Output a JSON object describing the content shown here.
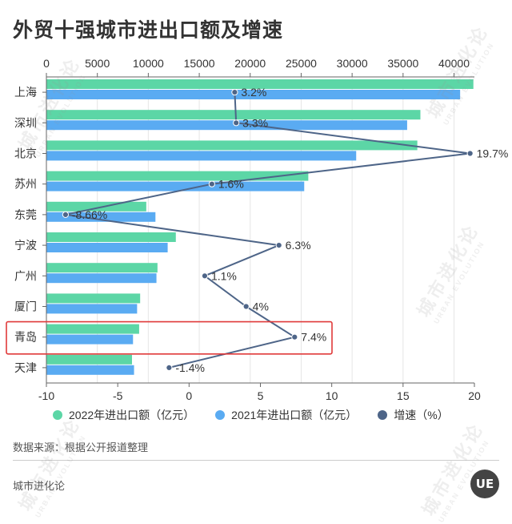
{
  "title": "外贸十强城市进出口额及增速",
  "chart_data": {
    "type": "bar",
    "orientation": "horizontal",
    "categories": [
      "上海",
      "深圳",
      "北京",
      "苏州",
      "东莞",
      "宁波",
      "广州",
      "厦门",
      "青岛",
      "天津"
    ],
    "series": [
      {
        "name": "2022年进出口额（亿元）",
        "axis": "top",
        "color": "#5cd6a6",
        "values": [
          41900,
          36700,
          36400,
          25700,
          9800,
          12700,
          10900,
          9200,
          9100,
          8400
        ]
      },
      {
        "name": "2021年进出口额（亿元）",
        "axis": "top",
        "color": "#5aabf2",
        "values": [
          40600,
          35400,
          30400,
          25300,
          10700,
          11900,
          10800,
          8900,
          8500,
          8600
        ]
      },
      {
        "name": "增速（%）",
        "axis": "bottom",
        "type": "line",
        "color": "#4e6588",
        "values": [
          3.2,
          3.3,
          19.7,
          1.6,
          -8.66,
          6.3,
          1.1,
          4,
          7.4,
          -1.4
        ],
        "labels": [
          "3.2%",
          "3.3%",
          "19.7%",
          "1.6%",
          "-8.66%",
          "6.3%",
          "1.1%",
          "4%",
          "7.4%",
          "-1.4%"
        ]
      }
    ],
    "top_axis": {
      "min": 0,
      "max": 42000,
      "ticks": [
        0,
        5000,
        10000,
        15000,
        20000,
        25000,
        30000,
        35000,
        40000
      ]
    },
    "bottom_axis": {
      "min": -10,
      "max": 20,
      "ticks": [
        -10,
        -5,
        0,
        5,
        10,
        15,
        20
      ]
    },
    "highlight_category": "青岛",
    "highlight_color": "#e03a3a",
    "legend_position": "bottom"
  },
  "source": "数据来源：根据公开报道整理",
  "brand": "城市进化论",
  "watermark": {
    "text": "城市进化论",
    "sub": "URBAN EVOLUTION"
  },
  "logo": "UE"
}
